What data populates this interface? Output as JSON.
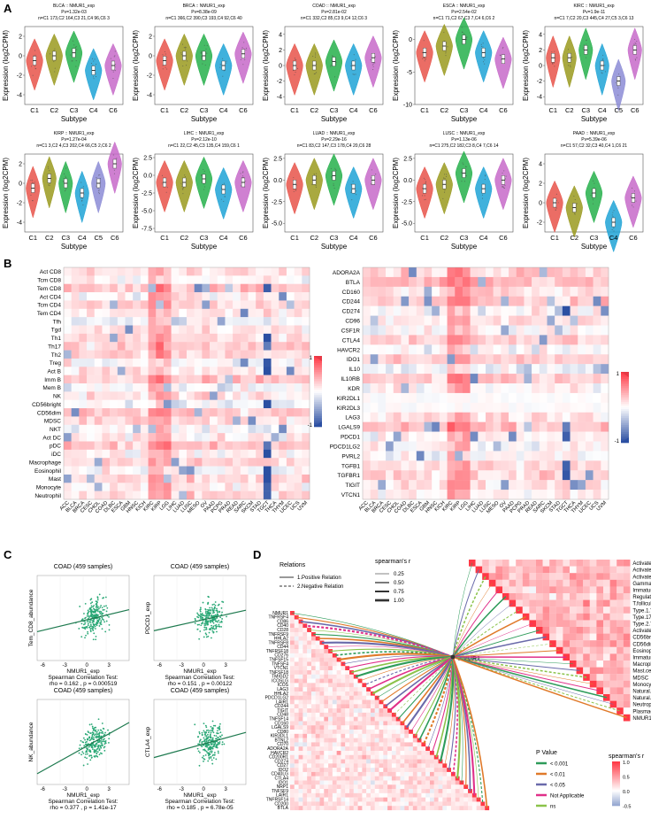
{
  "panel_labels": {
    "a": "A",
    "b": "B",
    "c": "C",
    "d": "D"
  },
  "colors": {
    "C1": "#e8544a",
    "C2": "#9a9a1e",
    "C3": "#26b04b",
    "C4": "#1fa3d6",
    "C5": "#8c8cd6",
    "C6": "#c76ac9",
    "heat_pos": "#e63946",
    "heat_neg": "#2b4fa2",
    "corr_point": "#2aa876",
    "corr_line": "#1e7a4f"
  },
  "violin": {
    "ylabel": "Expression (log2CPM)",
    "xlabel": "Subtype",
    "panels": [
      {
        "t1": "BLCA :: NMUR1_exp",
        "t2": "Pv=1.32e-03",
        "t3": "n=C1 173,C2 164,C3 21,C4 96,C6 3",
        "cats": [
          "C1",
          "C2",
          "C3",
          "C4",
          "C6"
        ],
        "yticks": [
          "2",
          "0",
          "-2",
          "-4"
        ],
        "ylim": [
          -5,
          3
        ],
        "med": [
          -0.5,
          0,
          0.3,
          -1.5,
          -1
        ]
      },
      {
        "t1": "BRCA :: NMUR1_exp",
        "t2": "Pv=8.38e-09",
        "t3": "n=C1 366,C2 390,C3 193,C4 92,C6 40",
        "cats": [
          "C1",
          "C2",
          "C3",
          "C4",
          "C6"
        ],
        "yticks": [
          "2",
          "0",
          "-2",
          "-4"
        ],
        "ylim": [
          -5,
          3
        ],
        "med": [
          -0.5,
          0,
          0,
          -1,
          0.2
        ]
      },
      {
        "t1": "COAD :: NMUR1_exp",
        "t2": "Pv=2.81e-02",
        "t3": "n=C1 332,C2 85,C3 9,C4 12,C6 3",
        "cats": [
          "C1",
          "C2",
          "C3",
          "C4",
          "C6"
        ],
        "yticks": [
          "4",
          "2",
          "0",
          "-2",
          "-4"
        ],
        "ylim": [
          -5,
          5
        ],
        "med": [
          0,
          0,
          0.5,
          0,
          1
        ]
      },
      {
        "t1": "ESCA :: NMUR1_exp",
        "t2": "Pv=2.54e-02",
        "t3": "n=C1 71,C2 67,C3 7,C4 6,C6 2",
        "cats": [
          "C1",
          "C2",
          "C3",
          "C4",
          "C6"
        ],
        "yticks": [
          "0",
          "-5",
          "-10"
        ],
        "ylim": [
          -10,
          2
        ],
        "med": [
          -2,
          -1,
          0,
          -2,
          -3
        ]
      },
      {
        "t1": "KIRC :: NMUR1_exp",
        "t2": "Pv=1.9e-11",
        "t3": "n=C1 7,C2 20,C3 445,C4 27,C5 3,C6 13",
        "cats": [
          "C1",
          "C2",
          "C3",
          "C4",
          "C5",
          "C6"
        ],
        "yticks": [
          "4",
          "2",
          "0",
          "-2",
          "-4"
        ],
        "ylim": [
          -5,
          5
        ],
        "med": [
          1,
          1,
          2,
          0,
          -2,
          2
        ]
      },
      {
        "t1": "KIRP :: NMUR1_exp",
        "t2": "Pv=1.27e-04",
        "t3": "n=C1 3,C2 4,C3 202,C4 66,C5 2,C6 2",
        "cats": [
          "C1",
          "C2",
          "C3",
          "C4",
          "C5",
          "C6"
        ],
        "yticks": [
          "2",
          "0",
          "-2",
          "-4"
        ],
        "ylim": [
          -5,
          3
        ],
        "med": [
          -0.5,
          0.5,
          0,
          -1,
          0,
          2
        ]
      },
      {
        "t1": "LIHC :: NMUR1_exp",
        "t2": "Pv=2.12e-10",
        "t3": "n=C1 22,C2 45,C3 135,C4 159,C6 1",
        "cats": [
          "C1",
          "C2",
          "C3",
          "C4",
          "C6"
        ],
        "yticks": [
          "2.5",
          "0.0",
          "-2.5",
          "-5.0",
          "-7.5"
        ],
        "ylim": [
          -8,
          3
        ],
        "med": [
          -1,
          -1,
          -0.5,
          -2,
          -1
        ]
      },
      {
        "t1": "LUAD :: NMUR1_exp",
        "t2": "Pv=2.29e-16",
        "t3": "n=C1 83,C2 147,C3 178,C4 20,C6 28",
        "cats": [
          "C1",
          "C2",
          "C3",
          "C4",
          "C6"
        ],
        "yticks": [
          "2.5",
          "0.0",
          "-2.5",
          "-5.0"
        ],
        "ylim": [
          -6,
          3
        ],
        "med": [
          -0.5,
          0,
          0.5,
          -1,
          0
        ]
      },
      {
        "t1": "LUSC :: NMUR1_exp",
        "t2": "Pv=1.13e-06",
        "t3": "n=C1 275,C2 182,C3 8,C4 7,C6 14",
        "cats": [
          "C1",
          "C2",
          "C3",
          "C4",
          "C6"
        ],
        "yticks": [
          "2.5",
          "0.0",
          "-2.5",
          "-5.0"
        ],
        "ylim": [
          -6,
          3
        ],
        "med": [
          -1,
          -0.5,
          0.8,
          -1,
          0
        ]
      },
      {
        "t1": "PAAD :: NMUR1_exp",
        "t2": "Pv=5.39e-06",
        "t3": "n=C1 57,C2 32,C3 40,C4 1,C6 21",
        "cats": [
          "C1",
          "C2",
          "C3",
          "C4",
          "C6"
        ],
        "yticks": [
          "4",
          "2",
          "0",
          "-2"
        ],
        "ylim": [
          -3,
          5
        ],
        "med": [
          0,
          -0.5,
          1,
          -2,
          0.5
        ]
      }
    ]
  },
  "heatmap_left": {
    "rows": [
      "Act CD8",
      "Tcm CD8",
      "Tem CD8",
      "Act CD4",
      "Tcm CD4",
      "Tem CD4",
      "Tfh",
      "Tgd",
      "Th1",
      "Th17",
      "Th2",
      "Treg",
      "Act B",
      "Imm B",
      "Mem B",
      "NK",
      "CD56bright",
      "CD56dim",
      "MDSC",
      "NKT",
      "Act DC",
      "pDC",
      "iDC",
      "Macrophage",
      "Eosinophil",
      "Mast",
      "Monocyte",
      "Neutrophil"
    ]
  },
  "heatmap_right": {
    "rows": [
      "ADORA2A",
      "BTLA",
      "CD160",
      "CD244",
      "CD274",
      "CD96",
      "CSF1R",
      "CTLA4",
      "HAVCR2",
      "IDO1",
      "IL10",
      "IL10RB",
      "KDR",
      "KIR2DL1",
      "KIR2DL3",
      "LAG3",
      "LGALS9",
      "PDCD1",
      "PDCD1LG2",
      "PVRL2",
      "TGFB1",
      "TGFBR1",
      "TIGIT",
      "VTCN1"
    ]
  },
  "cancers": [
    "ACC",
    "BLCA",
    "BRCA",
    "CESC",
    "CHOL",
    "COAD",
    "DLBC",
    "ESCA",
    "GBM",
    "HNSC",
    "KICH",
    "KIRC",
    "KIRP",
    "LGG",
    "LIHC",
    "LUAD",
    "LUSC",
    "MESO",
    "OV",
    "PAAD",
    "PCPG",
    "PRAD",
    "READ",
    "SARC",
    "SKCM",
    "STAD",
    "TGCT",
    "THCA",
    "THYM",
    "UCEC",
    "UCS",
    "UVM"
  ],
  "legend_b": {
    "max": "1",
    "min": "-1"
  },
  "scatter": [
    {
      "title": "COAD (459 samples)",
      "xlabel": "NMUR1_exp",
      "ylabel": "Tem_CD8_abundance",
      "test": "Spearman Correlation Test:",
      "stat": "rho = 0.162 ,  p = 0.000519",
      "xticks": [
        "-6",
        "-3",
        "0",
        "3"
      ],
      "rho": 0.162
    },
    {
      "title": "COAD (459 samples)",
      "xlabel": "NMUR1_exp",
      "ylabel": "PDCD1_exp",
      "test": "Spearman Correlation Test:",
      "stat": "rho = 0.151 ,  p = 0.00122",
      "xticks": [
        "-6",
        "-3",
        "0",
        "3"
      ],
      "rho": 0.151
    },
    {
      "title": "COAD (459 samples)",
      "xlabel": "NMUR1_exp",
      "ylabel": "NK_abundance",
      "test": "Spearman Correlation Test:",
      "stat": "rho = 0.377 ,  p = 1.41e-17",
      "xticks": [
        "-6",
        "-3",
        "0",
        "3"
      ],
      "rho": 0.377
    },
    {
      "title": "COAD (459 samples)",
      "xlabel": "NMUR1_exp",
      "ylabel": "CTLA4_exp",
      "test": "Spearman Correlation Test:",
      "stat": "rho = 0.185 ,  p = 6.78e-05",
      "xticks": [
        "-6",
        "-3",
        "0",
        "3"
      ],
      "rho": 0.185
    }
  ],
  "network": {
    "relations_title": "Relations",
    "relation_pos": "1.Positive Relation",
    "relation_neg": "2.Negative Relation",
    "spearman_title": "spearman's r",
    "width_values": [
      "0.25",
      "0.50",
      "0.75",
      "1.00"
    ],
    "hub": "NMUR1",
    "cells": [
      "Activated.B.cell",
      "Activated.CD4.T.cell",
      "Activated.CD8.T.cell",
      "Gamma.delta.T.cell",
      "Immature..B.cell",
      "Regulatory.T.cell",
      "T.follicular.helper.cell",
      "Type.1.T.helper.cell",
      "Type.17.T.helper.cell",
      "Type.2.T.helper.cell",
      "Activated.dendritic.cell",
      "CD56bright.natural.killer.cell",
      "CD56dim.natural.killer.cell",
      "Eosinophil",
      "Immature.dendritic.cell",
      "Macrophage",
      "Mast.cell",
      "MDSC",
      "Monocyte",
      "Natural.killer.cell",
      "Natural.killer.T.cell",
      "Neutrophil",
      "Plasmacytoid.dendritic.cell",
      "NMUR1"
    ],
    "genes": [
      "NMUR1",
      "TNFRSF4",
      "CD86",
      "CD40",
      "CD28",
      "TNFRSF9",
      "HHLA2",
      "TNFRSF8",
      "CD44",
      "TNFRSF18",
      "CD276",
      "TNFSF15",
      "TNFSF4",
      "VTCN1",
      "TNFSF18",
      "TMIGD2",
      "ICOSLG",
      "ICOS",
      "LAG3",
      "HHLA2",
      "PDCD1LG2",
      "LAIR1",
      "CD244",
      "TIGIT",
      "CD48",
      "TNFSF14",
      "CD160",
      "LGALS9",
      "CD80",
      "KIR3DL1",
      "BTNL2",
      "CD70",
      "ADORA2A",
      "HAVCR2",
      "CD200R1",
      "CD274",
      "CD27",
      "IDO2",
      "CD40LG",
      "CTLA4",
      "IDO1",
      "NRP1",
      "TNFSF9",
      "LAIR1",
      "TNFRSF14",
      "CD200",
      "BTLA"
    ],
    "pvalue_title": "P Value",
    "pvalue_items": [
      {
        "label": "< 0.001",
        "color": "#2e9c5a"
      },
      {
        "label": "< 0.01",
        "color": "#e07a2a"
      },
      {
        "label": "< 0.05",
        "color": "#6a6aaa"
      },
      {
        "label": "Not Applicable",
        "color": "#e0308a"
      },
      {
        "label": "ns",
        "color": "#8bc34a"
      }
    ],
    "rscale_title": "spearman's r",
    "rscale_ticks": [
      "1.0",
      "0.5",
      "0.0",
      "-0.5"
    ]
  }
}
